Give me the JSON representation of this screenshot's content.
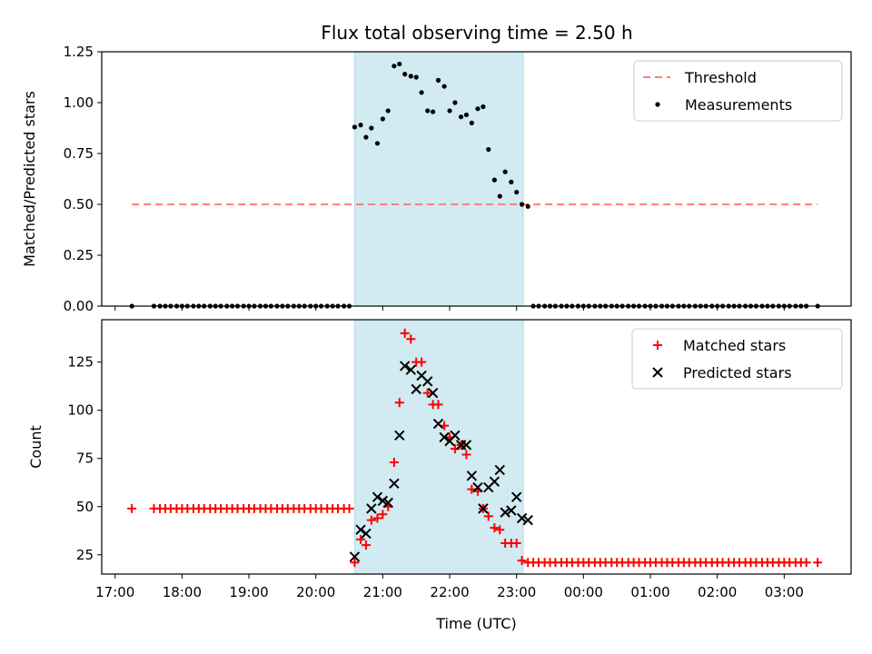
{
  "chart_data": [
    {
      "type": "scatter",
      "title": "Flux total observing time = 2.50 h",
      "xlabel": "",
      "ylabel": "Matched/Predicted stars",
      "ylim": [
        0,
        1.25
      ],
      "yticks": [
        "0.00",
        "0.25",
        "0.50",
        "0.75",
        "1.00",
        "1.25"
      ],
      "xlim": [
        16.8,
        28.0
      ],
      "highlight_span": [
        20.58,
        23.1
      ],
      "highlight_color": "#add8e6",
      "threshold": {
        "name": "Threshold",
        "y": 0.5,
        "x_range": [
          17.25,
          27.5
        ],
        "color": "#ff7f7f"
      },
      "legend": {
        "position": "top-right",
        "entries": [
          "Threshold",
          "Measurements"
        ]
      },
      "series": [
        {
          "name": "Measurements",
          "color": "#000000",
          "x": [
            17.25,
            17.58,
            17.67,
            17.75,
            17.83,
            17.92,
            18.0,
            18.08,
            18.17,
            18.25,
            18.33,
            18.42,
            18.5,
            18.58,
            18.67,
            18.75,
            18.83,
            18.92,
            19.0,
            19.08,
            19.17,
            19.25,
            19.33,
            19.42,
            19.5,
            19.58,
            19.67,
            19.75,
            19.83,
            19.92,
            20.0,
            20.08,
            20.17,
            20.25,
            20.33,
            20.42,
            20.5,
            20.58,
            20.67,
            20.75,
            20.83,
            20.92,
            21.0,
            21.08,
            21.17,
            21.25,
            21.33,
            21.42,
            21.5,
            21.58,
            21.67,
            21.75,
            21.83,
            21.92,
            22.0,
            22.08,
            22.17,
            22.25,
            22.33,
            22.42,
            22.5,
            22.58,
            22.67,
            22.75,
            22.83,
            22.92,
            23.0,
            23.08,
            23.17,
            23.25,
            23.33,
            23.42,
            23.5,
            23.58,
            23.67,
            23.75,
            23.83,
            23.92,
            24.0,
            24.08,
            24.17,
            24.25,
            24.33,
            24.42,
            24.5,
            24.58,
            24.67,
            24.75,
            24.83,
            24.92,
            25.0,
            25.08,
            25.17,
            25.25,
            25.33,
            25.42,
            25.5,
            25.58,
            25.67,
            25.75,
            25.83,
            25.92,
            26.0,
            26.08,
            26.17,
            26.25,
            26.33,
            26.42,
            26.5,
            26.58,
            26.67,
            26.75,
            26.83,
            26.92,
            27.0,
            27.08,
            27.17,
            27.25,
            27.33,
            27.5
          ],
          "y": [
            0,
            0,
            0,
            0,
            0,
            0,
            0,
            0,
            0,
            0,
            0,
            0,
            0,
            0,
            0,
            0,
            0,
            0,
            0,
            0,
            0,
            0,
            0,
            0,
            0,
            0,
            0,
            0,
            0,
            0,
            0,
            0,
            0,
            0,
            0,
            0,
            0,
            0.88,
            0.89,
            0.83,
            0.875,
            0.8,
            0.92,
            0.96,
            1.18,
            1.19,
            1.14,
            1.13,
            1.125,
            1.05,
            0.96,
            0.955,
            1.11,
            1.08,
            0.96,
            1.0,
            0.93,
            0.94,
            0.9,
            0.97,
            0.98,
            0.77,
            0.62,
            0.54,
            0.66,
            0.61,
            0.56,
            0.5,
            0.49,
            0,
            0,
            0,
            0,
            0,
            0,
            0,
            0,
            0,
            0,
            0,
            0,
            0,
            0,
            0,
            0,
            0,
            0,
            0,
            0,
            0,
            0,
            0,
            0,
            0,
            0,
            0,
            0,
            0,
            0,
            0,
            0,
            0,
            0,
            0,
            0,
            0,
            0,
            0,
            0,
            0,
            0,
            0,
            0,
            0,
            0,
            0,
            0,
            0,
            0,
            0
          ]
        }
      ]
    },
    {
      "type": "scatter",
      "title": "",
      "xlabel": "Time (UTC)",
      "ylabel": "Count",
      "ylim": [
        15,
        147
      ],
      "yticks": [
        "25",
        "50",
        "75",
        "100",
        "125"
      ],
      "xlim": [
        16.8,
        28.0
      ],
      "xticks": [
        "17:00",
        "18:00",
        "19:00",
        "20:00",
        "21:00",
        "22:00",
        "23:00",
        "00:00",
        "01:00",
        "02:00",
        "03:00"
      ],
      "highlight_span": [
        20.58,
        23.1
      ],
      "highlight_color": "#add8e6",
      "legend": {
        "position": "top-right",
        "entries": [
          "Matched stars",
          "Predicted stars"
        ]
      },
      "series": [
        {
          "name": "Matched stars",
          "marker": "plus",
          "color": "#ff0000",
          "x": [
            17.25,
            17.58,
            17.67,
            17.75,
            17.83,
            17.92,
            18.0,
            18.08,
            18.17,
            18.25,
            18.33,
            18.42,
            18.5,
            18.58,
            18.67,
            18.75,
            18.83,
            18.92,
            19.0,
            19.08,
            19.17,
            19.25,
            19.33,
            19.42,
            19.5,
            19.58,
            19.67,
            19.75,
            19.83,
            19.92,
            20.0,
            20.08,
            20.17,
            20.25,
            20.33,
            20.42,
            20.5,
            20.58,
            20.67,
            20.75,
            20.83,
            20.92,
            21.0,
            21.08,
            21.17,
            21.25,
            21.33,
            21.42,
            21.5,
            21.58,
            21.67,
            21.75,
            21.83,
            21.92,
            22.0,
            22.08,
            22.17,
            22.25,
            22.33,
            22.42,
            22.5,
            22.58,
            22.67,
            22.75,
            22.83,
            22.92,
            23.0,
            23.08,
            23.17,
            23.25,
            23.33,
            23.42,
            23.5,
            23.58,
            23.67,
            23.75,
            23.83,
            23.92,
            24.0,
            24.08,
            24.17,
            24.25,
            24.33,
            24.42,
            24.5,
            24.58,
            24.67,
            24.75,
            24.83,
            24.92,
            25.0,
            25.08,
            25.17,
            25.25,
            25.33,
            25.42,
            25.5,
            25.58,
            25.67,
            25.75,
            25.83,
            25.92,
            26.0,
            26.08,
            26.17,
            26.25,
            26.33,
            26.42,
            26.5,
            26.58,
            26.67,
            26.75,
            26.83,
            26.92,
            27.0,
            27.08,
            27.17,
            27.25,
            27.33,
            27.5
          ],
          "y": [
            49,
            49,
            49,
            49,
            49,
            49,
            49,
            49,
            49,
            49,
            49,
            49,
            49,
            49,
            49,
            49,
            49,
            49,
            49,
            49,
            49,
            49,
            49,
            49,
            49,
            49,
            49,
            49,
            49,
            49,
            49,
            49,
            49,
            49,
            49,
            49,
            49,
            21,
            33,
            30,
            43,
            44,
            46,
            50,
            73,
            104,
            140,
            137,
            125,
            125,
            109,
            103,
            103,
            92,
            86,
            80,
            82,
            77,
            59,
            58,
            49,
            45,
            39,
            38,
            31,
            31,
            31,
            22,
            21,
            21,
            21,
            21,
            21,
            21,
            21,
            21,
            21,
            21,
            21,
            21,
            21,
            21,
            21,
            21,
            21,
            21,
            21,
            21,
            21,
            21,
            21,
            21,
            21,
            21,
            21,
            21,
            21,
            21,
            21,
            21,
            21,
            21,
            21,
            21,
            21,
            21,
            21,
            21,
            21,
            21,
            21,
            21,
            21,
            21,
            21,
            21,
            21,
            21,
            21,
            21
          ]
        },
        {
          "name": "Predicted stars",
          "marker": "x",
          "color": "#000000",
          "x": [
            20.58,
            20.67,
            20.75,
            20.83,
            20.92,
            21.0,
            21.08,
            21.17,
            21.25,
            21.33,
            21.42,
            21.5,
            21.58,
            21.67,
            21.75,
            21.83,
            21.92,
            22.0,
            22.08,
            22.17,
            22.25,
            22.33,
            22.42,
            22.5,
            22.58,
            22.67,
            22.75,
            22.83,
            22.92,
            23.0,
            23.08,
            23.17
          ],
          "y": [
            24,
            38,
            36,
            49,
            55,
            53,
            52,
            62,
            87,
            123,
            121,
            111,
            118,
            115,
            109,
            93,
            86,
            84,
            87,
            82,
            82,
            66,
            60,
            49,
            60,
            63,
            69,
            47,
            48,
            55,
            44,
            43
          ]
        }
      ]
    }
  ]
}
